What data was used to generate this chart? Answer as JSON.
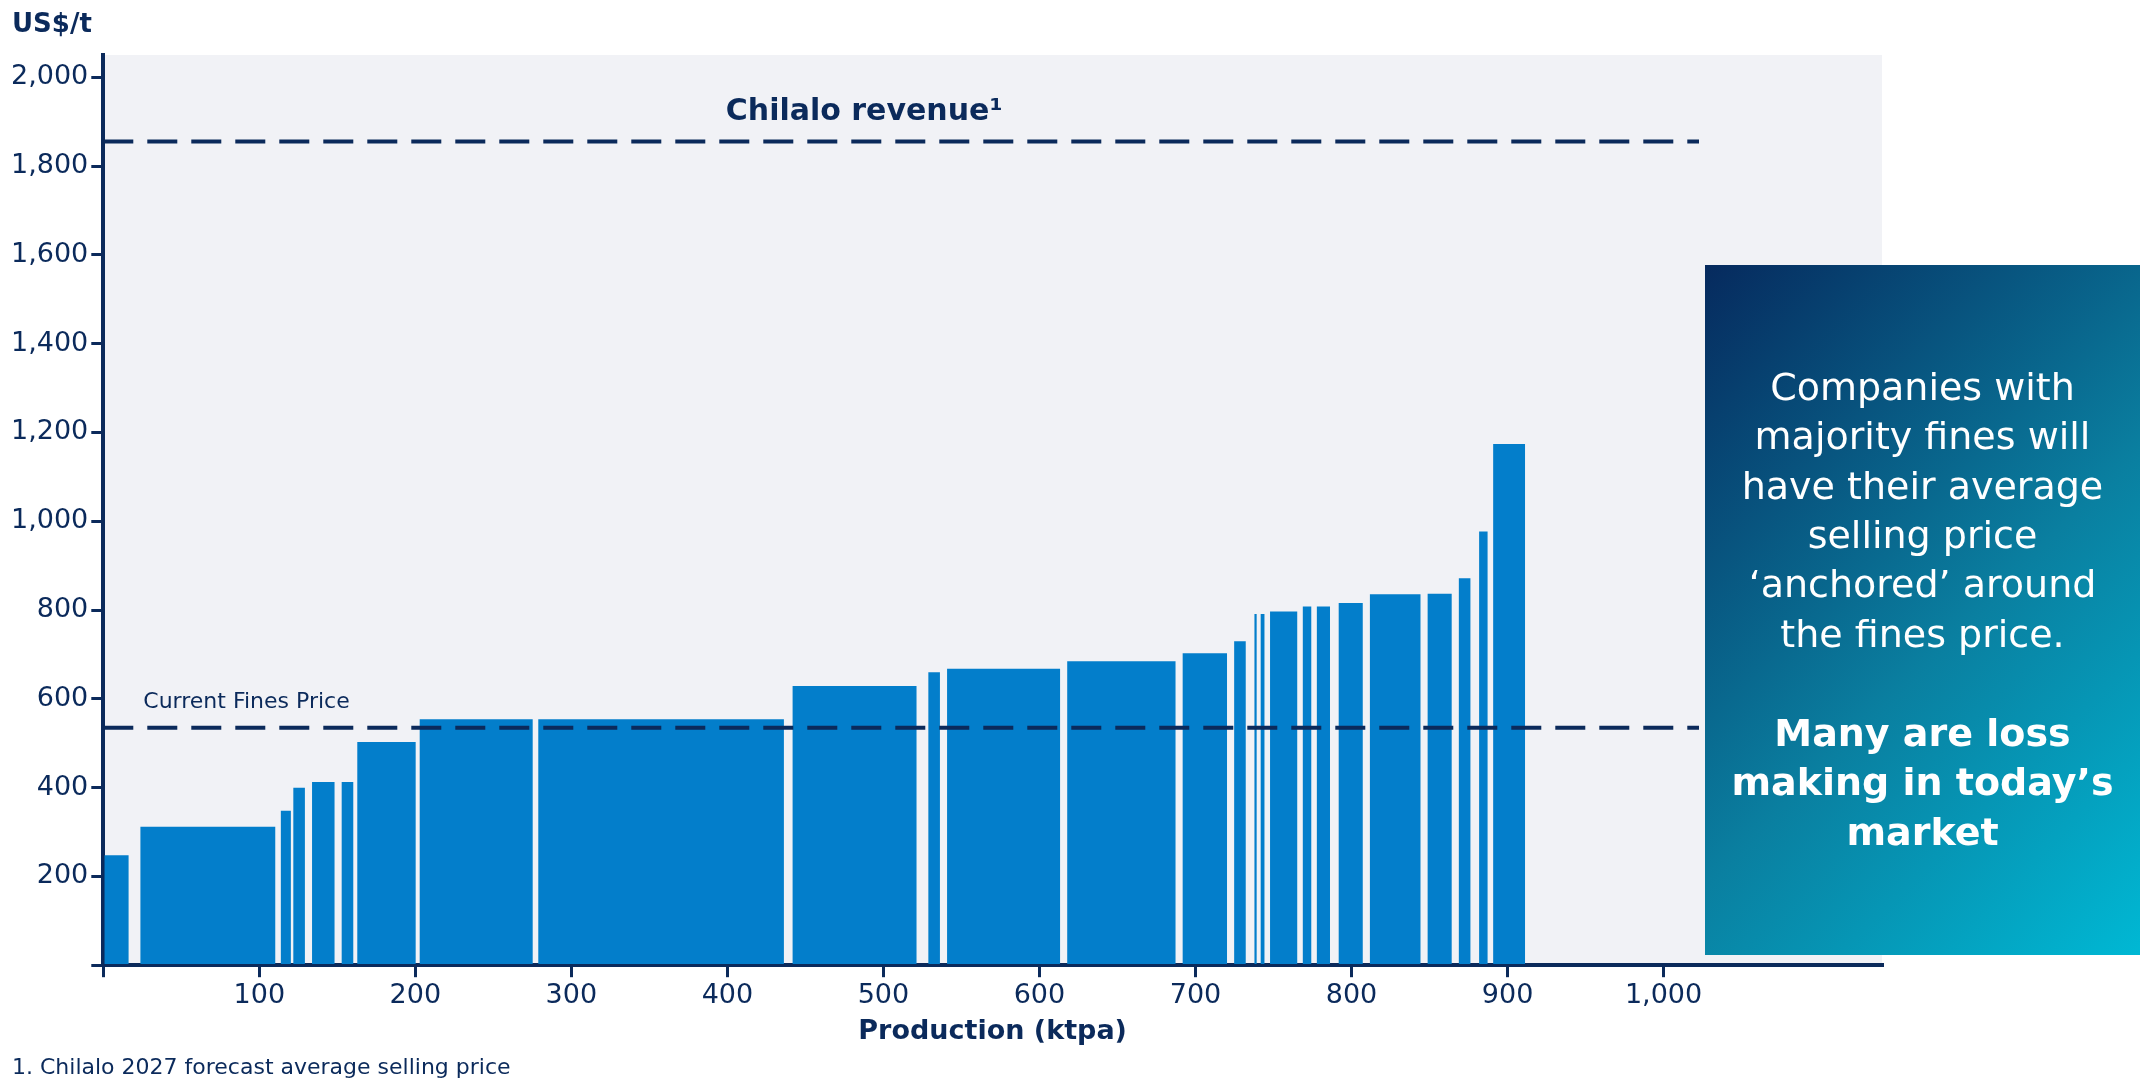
{
  "chart_data": {
    "type": "histogram",
    "ylabel": "US$/t",
    "xlabel": "Production (ktpa)",
    "bins": [
      1,
      16,
      24,
      110,
      114,
      120,
      122,
      129,
      134,
      148,
      153,
      160,
      163,
      200,
      203,
      275,
      279,
      436,
      442,
      521,
      529,
      536,
      541,
      613,
      618,
      687,
      692,
      720,
      725,
      732,
      738,
      739,
      742,
      744,
      748,
      765,
      769,
      774,
      778,
      786,
      792,
      807,
      812,
      844,
      849,
      864,
      869,
      876,
      882,
      887,
      891,
      911
    ],
    "values": [
      247,
      null,
      311,
      null,
      347,
      null,
      399,
      null,
      412,
      null,
      412,
      null,
      502,
      null,
      553,
      null,
      553,
      null,
      628,
      null,
      659,
      null,
      667,
      null,
      684,
      null,
      702,
      null,
      729,
      null,
      790,
      null,
      790,
      null,
      796,
      null,
      807,
      null,
      807,
      null,
      815,
      null,
      835,
      null,
      836,
      null,
      871,
      null,
      976,
      null,
      1173
    ],
    "color": "#037ecb",
    "xlim": [
      0,
      1140
    ],
    "xticks": [
      {
        "value": 0,
        "label": null
      },
      {
        "value": 100,
        "label": "100"
      },
      {
        "value": 200,
        "label": "200"
      },
      {
        "value": 300,
        "label": "300"
      },
      {
        "value": 400,
        "label": "400"
      },
      {
        "value": 500,
        "label": "500"
      },
      {
        "value": 600,
        "label": "600"
      },
      {
        "value": 700,
        "label": "700"
      },
      {
        "value": 800,
        "label": "800"
      },
      {
        "value": 900,
        "label": "900"
      },
      {
        "value": 1000,
        "label": "1,000"
      }
    ],
    "ylim": [
      0,
      2050
    ],
    "yticks": [
      {
        "value": 0,
        "label": null
      },
      {
        "value": 200,
        "label": "200"
      },
      {
        "value": 400,
        "label": "400"
      },
      {
        "value": 600,
        "label": "600"
      },
      {
        "value": 800,
        "label": "800"
      },
      {
        "value": 1000,
        "label": "1,000"
      },
      {
        "value": 1200,
        "label": "1,200"
      },
      {
        "value": 1400,
        "label": "1,400"
      },
      {
        "value": 1600,
        "label": "1,600"
      },
      {
        "value": 1800,
        "label": "1,800"
      },
      {
        "value": 2000,
        "label": "2,000"
      }
    ],
    "grid": false,
    "legend": false,
    "ref_lines": [
      {
        "axis": "y",
        "value": 1855,
        "label": "Chilalo revenue¹",
        "color": "#0b2a5b",
        "line_style": "dashed"
      },
      {
        "axis": "y",
        "value": 535,
        "label": "Current Fines Price",
        "color": "#0b2a5b",
        "line_style": "dashed"
      }
    ],
    "annotations": [
      "Companies with majority fines will have their average selling price ‘anchored’ around the fines price.",
      "Many are loss making in today’s market",
      "1. Chilalo 2027 forecast average selling price"
    ]
  }
}
